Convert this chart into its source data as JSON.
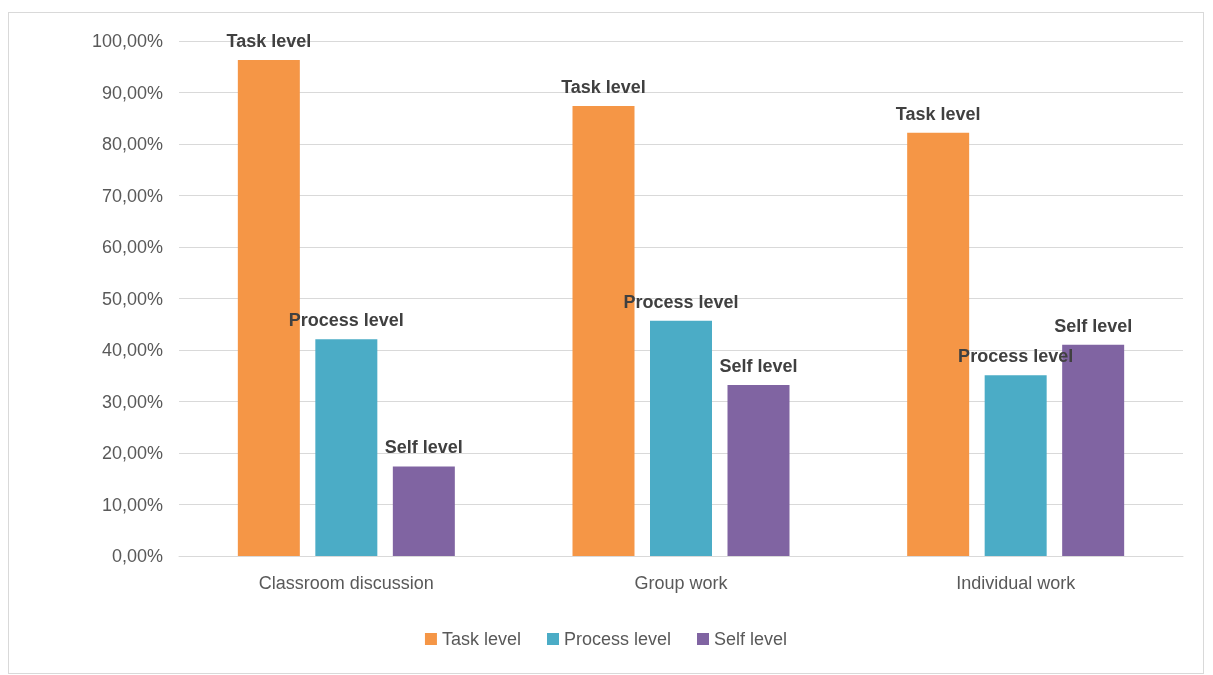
{
  "chart_data": {
    "type": "bar",
    "categories": [
      "Classroom discussion",
      "Group work",
      "Individual work"
    ],
    "series": [
      {
        "name": "Task level",
        "color": "#f59646",
        "values": [
          96.3,
          87.4,
          82.2
        ]
      },
      {
        "name": "Process level",
        "color": "#4bacc6",
        "values": [
          42.1,
          45.7,
          35.1
        ]
      },
      {
        "name": "Self level",
        "color": "#8064a2",
        "values": [
          17.4,
          33.2,
          41.0
        ]
      }
    ],
    "ylim": [
      0,
      100
    ],
    "yticks": [
      {
        "value": 0,
        "label": "0,00%"
      },
      {
        "value": 10,
        "label": "10,00%"
      },
      {
        "value": 20,
        "label": "20,00%"
      },
      {
        "value": 30,
        "label": "30,00%"
      },
      {
        "value": 40,
        "label": "40,00%"
      },
      {
        "value": 50,
        "label": "50,00%"
      },
      {
        "value": 60,
        "label": "60,00%"
      },
      {
        "value": 70,
        "label": "70,00%"
      },
      {
        "value": 80,
        "label": "80,00%"
      },
      {
        "value": 90,
        "label": "90,00%"
      },
      {
        "value": 100,
        "label": "100,00%"
      }
    ],
    "grid": "y",
    "legend": "bottom"
  }
}
